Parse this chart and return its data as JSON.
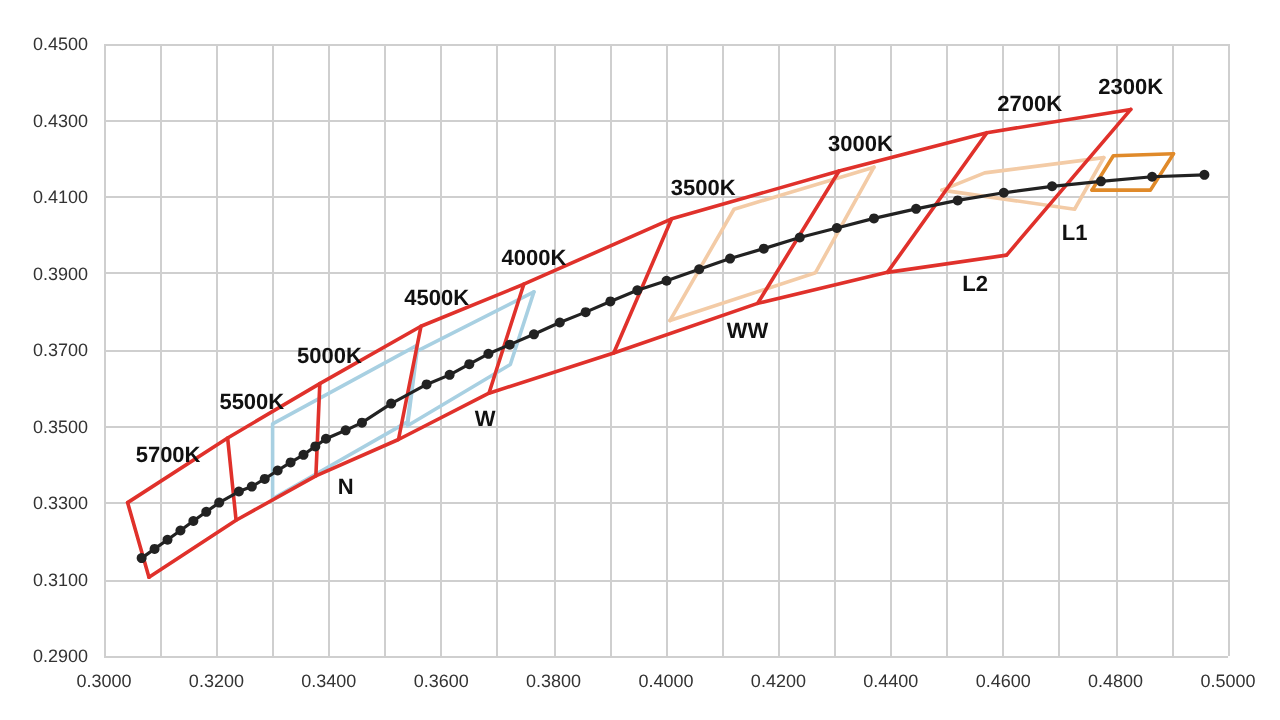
{
  "chart_data": {
    "type": "line",
    "xlim": [
      0.3,
      0.5
    ],
    "ylim": [
      0.29,
      0.45
    ],
    "xticks": [
      {
        "value": 0.3,
        "label": "0.3000"
      },
      {
        "value": 0.31,
        "label": null
      },
      {
        "value": 0.32,
        "label": "0.3200"
      },
      {
        "value": 0.33,
        "label": null
      },
      {
        "value": 0.34,
        "label": "0.3400"
      },
      {
        "value": 0.35,
        "label": null
      },
      {
        "value": 0.36,
        "label": "0.3600"
      },
      {
        "value": 0.37,
        "label": null
      },
      {
        "value": 0.38,
        "label": "0.3800"
      },
      {
        "value": 0.39,
        "label": null
      },
      {
        "value": 0.4,
        "label": "0.4000"
      },
      {
        "value": 0.41,
        "label": null
      },
      {
        "value": 0.42,
        "label": "0.4200"
      },
      {
        "value": 0.43,
        "label": null
      },
      {
        "value": 0.44,
        "label": "0.4400"
      },
      {
        "value": 0.45,
        "label": null
      },
      {
        "value": 0.46,
        "label": "0.4600"
      },
      {
        "value": 0.47,
        "label": null
      },
      {
        "value": 0.48,
        "label": "0.4800"
      },
      {
        "value": 0.49,
        "label": null
      },
      {
        "value": 0.5,
        "label": "0.5000"
      }
    ],
    "yticks": [
      {
        "value": 0.29,
        "label": "0.2900"
      },
      {
        "value": 0.31,
        "label": "0.3100"
      },
      {
        "value": 0.33,
        "label": "0.3300"
      },
      {
        "value": 0.35,
        "label": "0.3500"
      },
      {
        "value": 0.37,
        "label": "0.3700"
      },
      {
        "value": 0.39,
        "label": "0.3900"
      },
      {
        "value": 0.41,
        "label": "0.4100"
      },
      {
        "value": 0.43,
        "label": "0.4300"
      },
      {
        "value": 0.45,
        "label": "0.4500"
      }
    ],
    "grid": true,
    "line_style": "solid",
    "series": [
      {
        "color": "#a8d0e2",
        "marker": "none",
        "x": [
          0.33,
          0.33,
          0.3557
        ],
        "values": [
          0.3311,
          0.3507,
          0.3712
        ]
      },
      {
        "color": "#a8d0e2",
        "marker": "none",
        "x": [
          0.33,
          0.354,
          0.3557
        ],
        "values": [
          0.3311,
          0.3512,
          0.3712
        ]
      },
      {
        "color": "#a8d0e2",
        "marker": "none",
        "x": [
          0.354,
          0.3557,
          0.3765
        ],
        "values": [
          0.3502,
          0.3697,
          0.3852
        ]
      },
      {
        "color": "#a8d0e2",
        "marker": "none",
        "x": [
          0.354,
          0.3723,
          0.3765
        ],
        "values": [
          0.3502,
          0.3662,
          0.3852
        ]
      },
      {
        "color": "#f3cba6",
        "marker": "none",
        "x": [
          0.4007,
          0.4121,
          0.437
        ],
        "values": [
          0.3777,
          0.4068,
          0.4178
        ]
      },
      {
        "color": "#f3cba6",
        "marker": "none",
        "x": [
          0.4007,
          0.4266,
          0.437
        ],
        "values": [
          0.3777,
          0.3902,
          0.4178
        ]
      },
      {
        "color": "#f3cba6",
        "marker": "none",
        "x": [
          0.4491,
          0.4567,
          0.4779
        ],
        "values": [
          0.4118,
          0.4163,
          0.4203
        ]
      },
      {
        "color": "#f3cba6",
        "marker": "none",
        "x": [
          0.4491,
          0.4727,
          0.4779
        ],
        "values": [
          0.4118,
          0.4068,
          0.4203
        ]
      },
      {
        "color": "#e08a2a",
        "marker": "none",
        "x": [
          0.4758,
          0.4796,
          0.4903
        ],
        "values": [
          0.4118,
          0.4208,
          0.4213
        ]
      },
      {
        "color": "#e08a2a",
        "marker": "none",
        "x": [
          0.4758,
          0.4862,
          0.4903
        ],
        "values": [
          0.4118,
          0.4118,
          0.4213
        ]
      },
      {
        "color": "#e0312b",
        "marker": "none",
        "x": [
          0.3042,
          0.322,
          0.3384,
          0.3564,
          0.3747,
          0.401,
          0.4308,
          0.4571,
          0.4827
        ],
        "values": [
          0.3301,
          0.347,
          0.3612,
          0.3762,
          0.3872,
          0.4043,
          0.4168,
          0.4268,
          0.4329
        ]
      },
      {
        "color": "#e0312b",
        "marker": "none",
        "x": [
          0.308,
          0.3235,
          0.3377,
          0.3524,
          0.3685,
          0.3907,
          0.4163,
          0.4394,
          0.4606
        ],
        "values": [
          0.3106,
          0.3255,
          0.3371,
          0.3466,
          0.3587,
          0.3692,
          0.3822,
          0.3903,
          0.3948
        ]
      },
      {
        "color": "#e0312b",
        "marker": "none",
        "x": [
          0.3042,
          0.308
        ],
        "values": [
          0.3301,
          0.3106
        ]
      },
      {
        "color": "#e0312b",
        "marker": "none",
        "x": [
          0.322,
          0.3235
        ],
        "values": [
          0.347,
          0.3255
        ]
      },
      {
        "color": "#e0312b",
        "marker": "none",
        "x": [
          0.3377,
          0.3384
        ],
        "values": [
          0.3371,
          0.3612
        ]
      },
      {
        "color": "#e0312b",
        "marker": "none",
        "x": [
          0.3524,
          0.3564
        ],
        "values": [
          0.3466,
          0.3762
        ]
      },
      {
        "color": "#e0312b",
        "marker": "none",
        "x": [
          0.3685,
          0.3747
        ],
        "values": [
          0.3587,
          0.3872
        ]
      },
      {
        "color": "#e0312b",
        "marker": "none",
        "x": [
          0.3907,
          0.401
        ],
        "values": [
          0.3692,
          0.4043
        ]
      },
      {
        "color": "#e0312b",
        "marker": "none",
        "x": [
          0.4163,
          0.4308
        ],
        "values": [
          0.3822,
          0.4168
        ]
      },
      {
        "color": "#e0312b",
        "marker": "none",
        "x": [
          0.4394,
          0.4571
        ],
        "values": [
          0.3903,
          0.4268
        ]
      },
      {
        "color": "#e0312b",
        "marker": "none",
        "x": [
          0.4606,
          0.4827
        ],
        "values": [
          0.3948,
          0.4329
        ]
      },
      {
        "color": "#222222",
        "marker": "circle",
        "x": [
          0.3067,
          0.309,
          0.3113,
          0.3136,
          0.3159,
          0.3182,
          0.3205,
          0.324,
          0.3263,
          0.3286,
          0.3309,
          0.3332,
          0.3355,
          0.3376,
          0.3395,
          0.343,
          0.3459,
          0.3511,
          0.3574,
          0.3615,
          0.365,
          0.3684,
          0.3722,
          0.3765,
          0.3811,
          0.3857,
          0.3901,
          0.3949,
          0.4001,
          0.4059,
          0.4114,
          0.4174,
          0.4238,
          0.4304,
          0.437,
          0.4445,
          0.4519,
          0.4601,
          0.4687,
          0.4774,
          0.4865,
          0.4958
        ],
        "values": [
          0.3156,
          0.318,
          0.3204,
          0.3228,
          0.3253,
          0.3277,
          0.3301,
          0.333,
          0.3343,
          0.3363,
          0.3385,
          0.3406,
          0.3426,
          0.3448,
          0.3468,
          0.349,
          0.351,
          0.356,
          0.361,
          0.3635,
          0.3663,
          0.369,
          0.3714,
          0.3741,
          0.3772,
          0.3799,
          0.3827,
          0.3856,
          0.3881,
          0.3911,
          0.3939,
          0.3965,
          0.3994,
          0.4019,
          0.4044,
          0.4069,
          0.4091,
          0.4111,
          0.4128,
          0.4141,
          0.4153,
          0.4158
        ]
      }
    ],
    "annotations": [
      {
        "text": "5700K",
        "x": 0.3114,
        "y": 0.3369
      },
      {
        "text": "5500K",
        "x": 0.3263,
        "y": 0.3507
      },
      {
        "text": "5000K",
        "x": 0.3401,
        "y": 0.3626
      },
      {
        "text": "4500K",
        "x": 0.3592,
        "y": 0.3779
      },
      {
        "text": "4000K",
        "x": 0.3765,
        "y": 0.3884
      },
      {
        "text": "3500K",
        "x": 0.4066,
        "y": 0.4066
      },
      {
        "text": "3000K",
        "x": 0.4346,
        "y": 0.4182
      },
      {
        "text": "2700K",
        "x": 0.4647,
        "y": 0.4286
      },
      {
        "text": "2300K",
        "x": 0.4827,
        "y": 0.4329
      },
      {
        "text": "N",
        "x": 0.343,
        "y": 0.3405
      },
      {
        "text": "W",
        "x": 0.3678,
        "y": 0.3582
      },
      {
        "text": "WW",
        "x": 0.4145,
        "y": 0.3813
      },
      {
        "text": "L2",
        "x": 0.455,
        "y": 0.3936
      },
      {
        "text": "L1",
        "x": 0.4727,
        "y": 0.4068
      }
    ]
  }
}
